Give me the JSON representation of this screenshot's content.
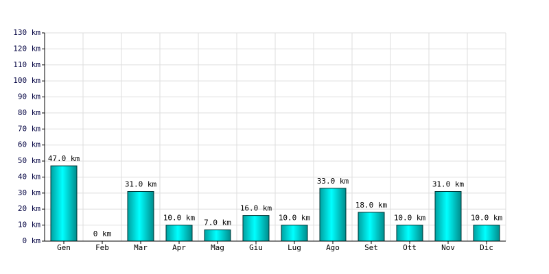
{
  "chart_data": {
    "type": "bar",
    "categories": [
      "Gen",
      "Feb",
      "Mar",
      "Apr",
      "Mag",
      "Giu",
      "Lug",
      "Ago",
      "Set",
      "Ott",
      "Nov",
      "Dic"
    ],
    "values": [
      47,
      0,
      31,
      10,
      7,
      16,
      10,
      33,
      18,
      10,
      31,
      10
    ],
    "value_labels": [
      "47.0 km",
      "0 km",
      "31.0 km",
      "10.0 km",
      "7.0 km",
      "16.0 km",
      "10.0 km",
      "33.0 km",
      "18.0 km",
      "10.0 km",
      "31.0 km",
      "10.0 km"
    ],
    "color": "#00cccc",
    "ylim": [
      0,
      130
    ],
    "yticks": [
      {
        "value": 0,
        "label": "0 km"
      },
      {
        "value": 10,
        "label": "10 km"
      },
      {
        "value": 20,
        "label": "20 km"
      },
      {
        "value": 30,
        "label": "30 km"
      },
      {
        "value": 40,
        "label": "40 km"
      },
      {
        "value": 50,
        "label": "50 km"
      },
      {
        "value": 60,
        "label": "60 km"
      },
      {
        "value": 70,
        "label": "70 km"
      },
      {
        "value": 80,
        "label": "80 km"
      },
      {
        "value": 90,
        "label": "90 km"
      },
      {
        "value": 100,
        "label": "100 km"
      },
      {
        "value": 110,
        "label": "110 km"
      },
      {
        "value": 120,
        "label": "120 km"
      },
      {
        "value": 130,
        "label": "130 km"
      }
    ],
    "grid": true
  }
}
